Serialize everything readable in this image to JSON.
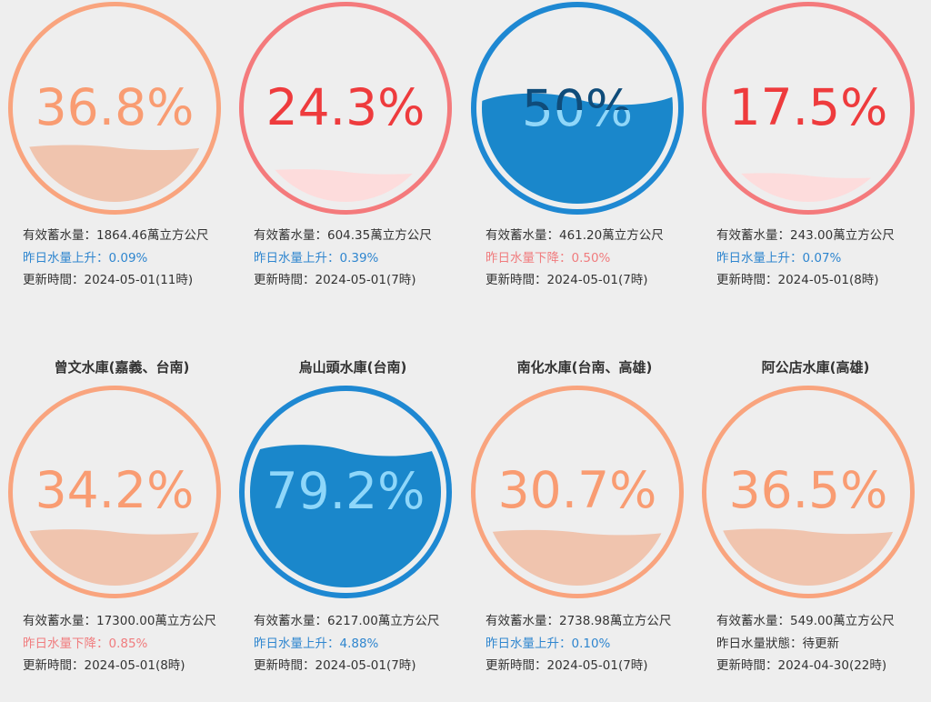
{
  "labels": {
    "capacity_prefix": "有效蓄水量：",
    "capacity_unit": "萬立方公尺",
    "update_prefix": "更新時間："
  },
  "colors": {
    "orange_ring": "#f9a47e",
    "orange_fill": "#f0c4ae",
    "orange_text": "#f99c72",
    "red_ring": "#f47a7c",
    "red_fill": "#fddcdc",
    "red_text": "#ee3b3d",
    "blue_ring": "#1e88d2",
    "blue_fill": "#1a87cb",
    "blue_text_light": "#8fd7fa",
    "blue_text_dark": "#0f4c7a",
    "rise_text": "#2f86cf",
    "fall_text": "#f07c7e",
    "neutral_text": "#333333",
    "background": "#eeeeee"
  },
  "reservoirs": [
    {
      "name": "",
      "percent_label": "36.8%",
      "level": 0.368,
      "theme": "orange",
      "capacity": "1864.46",
      "change_text": "昨日水量上升：0.09%",
      "change_kind": "rise",
      "updated": "2024-05-01(11時)"
    },
    {
      "name": "",
      "percent_label": "24.3%",
      "level": 0.243,
      "theme": "red",
      "capacity": "604.35",
      "change_text": "昨日水量上升：0.39%",
      "change_kind": "rise",
      "updated": "2024-05-01(7時)"
    },
    {
      "name": "",
      "percent_label": "50%",
      "level": 0.5,
      "theme": "blue",
      "capacity": "461.20",
      "change_text": "昨日水量下降：0.50%",
      "change_kind": "fall",
      "updated": "2024-05-01(7時)"
    },
    {
      "name": "",
      "percent_label": "17.5%",
      "level": 0.175,
      "theme": "red",
      "capacity": "243.00",
      "change_text": "昨日水量上升：0.07%",
      "change_kind": "rise",
      "updated": "2024-05-01(8時)"
    },
    {
      "name": "曾文水庫(嘉義、台南)",
      "percent_label": "34.2%",
      "level": 0.342,
      "theme": "orange",
      "capacity": "17300.00",
      "change_text": "昨日水量下降：0.85%",
      "change_kind": "fall",
      "updated": "2024-05-01(8時)"
    },
    {
      "name": "烏山頭水庫(台南)",
      "percent_label": "79.2%",
      "level": 0.792,
      "theme": "blue",
      "capacity": "6217.00",
      "change_text": "昨日水量上升：4.88%",
      "change_kind": "rise",
      "updated": "2024-05-01(7時)"
    },
    {
      "name": "南化水庫(台南、高雄)",
      "percent_label": "30.7%",
      "level": 0.307,
      "theme": "orange",
      "capacity": "2738.98",
      "change_text": "昨日水量上升：0.10%",
      "change_kind": "rise",
      "updated": "2024-05-01(7時)"
    },
    {
      "name": "阿公店水庫(高雄)",
      "percent_label": "36.5%",
      "level": 0.365,
      "theme": "orange",
      "capacity": "549.00",
      "change_text": "昨日水量狀態：待更新",
      "change_kind": "neutral",
      "updated": "2024-04-30(22時)"
    }
  ]
}
